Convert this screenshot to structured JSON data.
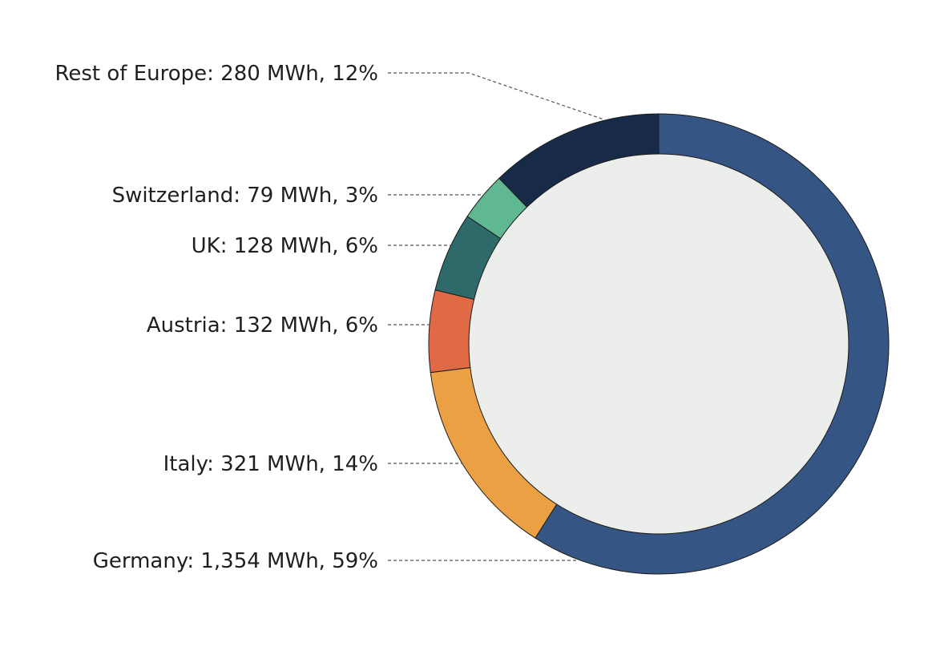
{
  "chart_data": {
    "type": "pie",
    "variant": "donut",
    "unit": "MWh",
    "start_angle": "12 o'clock",
    "direction": "clockwise",
    "center_color": "#eceeec",
    "slices": [
      {
        "name": "Germany",
        "value": 1354,
        "percent": 59,
        "color": "#355684",
        "label": "Germany: 1,354 MWh, 59%"
      },
      {
        "name": "Italy",
        "value": 321,
        "percent": 14,
        "color": "#eba044",
        "label": "Italy: 321 MWh, 14%"
      },
      {
        "name": "Austria",
        "value": 132,
        "percent": 6,
        "color": "#e06946",
        "label": "Austria: 132 MWh, 6%"
      },
      {
        "name": "UK",
        "value": 128,
        "percent": 6,
        "color": "#2e6a6a",
        "label": "UK: 128 MWh, 6%"
      },
      {
        "name": "Switzerland",
        "value": 79,
        "percent": 3,
        "color": "#5fb892",
        "label": "Switzerland: 79 MWh, 3%"
      },
      {
        "name": "Rest of Europe",
        "value": 280,
        "percent": 12,
        "color": "#172b48",
        "label": "Rest of Europe: 280 MWh, 12%"
      }
    ]
  }
}
